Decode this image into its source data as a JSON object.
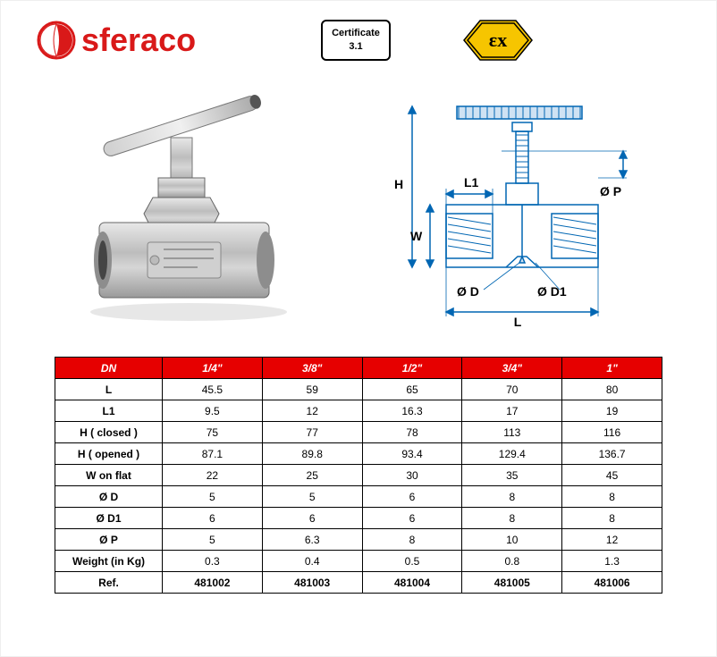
{
  "brand": {
    "name": "sferaco",
    "logo_color": "#d91919"
  },
  "certificate": {
    "line1": "Certificate",
    "line2": "3.1"
  },
  "ex_badge": {
    "text": "Ex",
    "fill": "#f6c500",
    "stroke": "#000000"
  },
  "diagram": {
    "labels": {
      "H": "H",
      "W": "W",
      "L": "L",
      "L1": "L1",
      "D": "Ø D",
      "D1": "Ø D1",
      "P": "Ø P"
    },
    "line_color": "#0066b3",
    "hatch_color": "#0066b3"
  },
  "table": {
    "header_bg": "#e60000",
    "header_fg": "#ffffff",
    "columns": [
      "DN",
      "1/4\"",
      "3/8\"",
      "1/2\"",
      "3/4\"",
      "1\""
    ],
    "rows": [
      {
        "label": "L",
        "values": [
          "45.5",
          "59",
          "65",
          "70",
          "80"
        ]
      },
      {
        "label": "L1",
        "values": [
          "9.5",
          "12",
          "16.3",
          "17",
          "19"
        ]
      },
      {
        "label": "H ( closed )",
        "values": [
          "75",
          "77",
          "78",
          "113",
          "116"
        ]
      },
      {
        "label": "H ( opened )",
        "values": [
          "87.1",
          "89.8",
          "93.4",
          "129.4",
          "136.7"
        ]
      },
      {
        "label": "W on flat",
        "values": [
          "22",
          "25",
          "30",
          "35",
          "45"
        ]
      },
      {
        "label": "Ø D",
        "values": [
          "5",
          "5",
          "6",
          "8",
          "8"
        ]
      },
      {
        "label": "Ø D1",
        "values": [
          "6",
          "6",
          "6",
          "8",
          "8"
        ]
      },
      {
        "label": "Ø P",
        "values": [
          "5",
          "6.3",
          "8",
          "10",
          "12"
        ]
      },
      {
        "label": "Weight (in Kg)",
        "values": [
          "0.3",
          "0.4",
          "0.5",
          "0.8",
          "1.3"
        ]
      },
      {
        "label": "Ref.",
        "values": [
          "481002",
          "481003",
          "481004",
          "481005",
          "481006"
        ],
        "bold": true
      }
    ]
  }
}
